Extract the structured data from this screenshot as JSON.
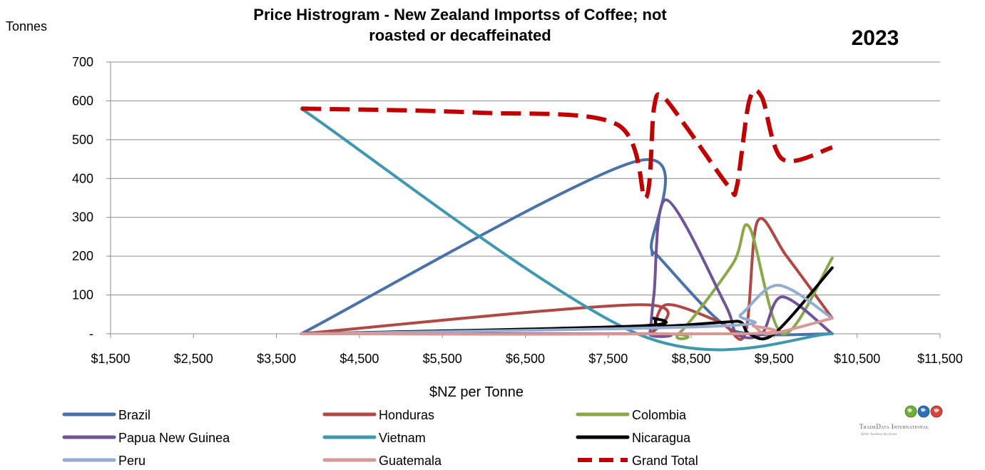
{
  "chart_data": {
    "type": "line",
    "title": "Price Histrogram - New Zealand Importss of Coffee; not roasted or decaffeinated",
    "title_lines": [
      "Price Histrogram - New Zealand Importss of Coffee; not",
      "roasted or decaffeinated"
    ],
    "year_label": "2023",
    "ylabel": "Tonnes",
    "xlabel": "$NZ per Tonne",
    "ylim": [
      0,
      700
    ],
    "xlim": [
      1500,
      11500
    ],
    "y_ticks": [
      {
        "value": 0,
        "label": "-"
      },
      {
        "value": 100,
        "label": "100"
      },
      {
        "value": 200,
        "label": "200"
      },
      {
        "value": 300,
        "label": "300"
      },
      {
        "value": 400,
        "label": "400"
      },
      {
        "value": 500,
        "label": "500"
      },
      {
        "value": 600,
        "label": "600"
      },
      {
        "value": 700,
        "label": "700"
      }
    ],
    "x_ticks": [
      {
        "value": 1500,
        "label": "$1,500"
      },
      {
        "value": 2500,
        "label": "$2,500"
      },
      {
        "value": 3500,
        "label": "$3,500"
      },
      {
        "value": 4500,
        "label": "$4,500"
      },
      {
        "value": 5500,
        "label": "$5,500"
      },
      {
        "value": 6500,
        "label": "$6,500"
      },
      {
        "value": 7500,
        "label": "$7,500"
      },
      {
        "value": 8500,
        "label": "$8,500"
      },
      {
        "value": 9500,
        "label": "$9,500"
      },
      {
        "value": 10500,
        "label": "$10,500"
      },
      {
        "value": 11500,
        "label": "$11,500"
      }
    ],
    "grid": "horizontal",
    "legend_position": "bottom",
    "series": [
      {
        "name": "Brazil",
        "color": "#4a72a8",
        "dashed": false,
        "points": [
          [
            3800,
            0
          ],
          [
            7850,
            445
          ],
          [
            8020,
            220
          ],
          [
            8100,
            200
          ],
          [
            8800,
            40
          ],
          [
            9200,
            0
          ],
          [
            10200,
            0
          ]
        ]
      },
      {
        "name": "Honduras",
        "color": "#b04846",
        "dashed": false,
        "points": [
          [
            3800,
            0
          ],
          [
            7900,
            75
          ],
          [
            8020,
            0
          ],
          [
            8200,
            75
          ],
          [
            8850,
            30
          ],
          [
            9150,
            0
          ],
          [
            9300,
            290
          ],
          [
            9650,
            200
          ],
          [
            10200,
            40
          ]
        ]
      },
      {
        "name": "Colombia",
        "color": "#89a84a",
        "dashed": false,
        "points": [
          [
            3800,
            0
          ],
          [
            8100,
            0
          ],
          [
            8350,
            0
          ],
          [
            9000,
            180
          ],
          [
            9200,
            275
          ],
          [
            9600,
            0
          ],
          [
            10200,
            195
          ]
        ]
      },
      {
        "name": "Papua New Guinea",
        "color": "#6f5497",
        "dashed": false,
        "points": [
          [
            3800,
            0
          ],
          [
            7950,
            0
          ],
          [
            8000,
            0
          ],
          [
            8050,
            100
          ],
          [
            8200,
            345
          ],
          [
            8900,
            80
          ],
          [
            9050,
            0
          ],
          [
            9350,
            0
          ],
          [
            9600,
            95
          ],
          [
            10200,
            0
          ]
        ]
      },
      {
        "name": "Vietnam",
        "color": "#3f98b0",
        "dashed": false,
        "points": [
          [
            3800,
            580
          ],
          [
            7850,
            0
          ],
          [
            10200,
            0
          ]
        ]
      },
      {
        "name": "Nicaragua",
        "color": "#000000",
        "dashed": false,
        "points": [
          [
            3800,
            0
          ],
          [
            7850,
            20
          ],
          [
            8050,
            40
          ],
          [
            8150,
            20
          ],
          [
            8900,
            30
          ],
          [
            9100,
            30
          ],
          [
            9200,
            0
          ],
          [
            9500,
            0
          ],
          [
            10200,
            170
          ]
        ]
      },
      {
        "name": "Peru",
        "color": "#95acd1",
        "dashed": false,
        "points": [
          [
            3800,
            0
          ],
          [
            8850,
            20
          ],
          [
            9100,
            50
          ],
          [
            9550,
            125
          ],
          [
            10200,
            40
          ]
        ]
      },
      {
        "name": "Guatemala",
        "color": "#d99795",
        "dashed": false,
        "points": [
          [
            3800,
            0
          ],
          [
            9100,
            0
          ],
          [
            9250,
            20
          ],
          [
            9450,
            0
          ],
          [
            10200,
            40
          ]
        ]
      },
      {
        "name": "Grand Total",
        "color": "#c00000",
        "dashed": true,
        "points": [
          [
            3800,
            580
          ],
          [
            5900,
            570
          ],
          [
            7600,
            540
          ],
          [
            7950,
            350
          ],
          [
            8050,
            580
          ],
          [
            8150,
            612
          ],
          [
            8450,
            530
          ],
          [
            8950,
            380
          ],
          [
            9050,
            380
          ],
          [
            9200,
            600
          ],
          [
            9350,
            610
          ],
          [
            9600,
            450
          ],
          [
            10200,
            480
          ]
        ]
      }
    ]
  },
  "branding": {
    "logo_title": "TradeData International",
    "logo_tagline": "Better business decisions"
  }
}
